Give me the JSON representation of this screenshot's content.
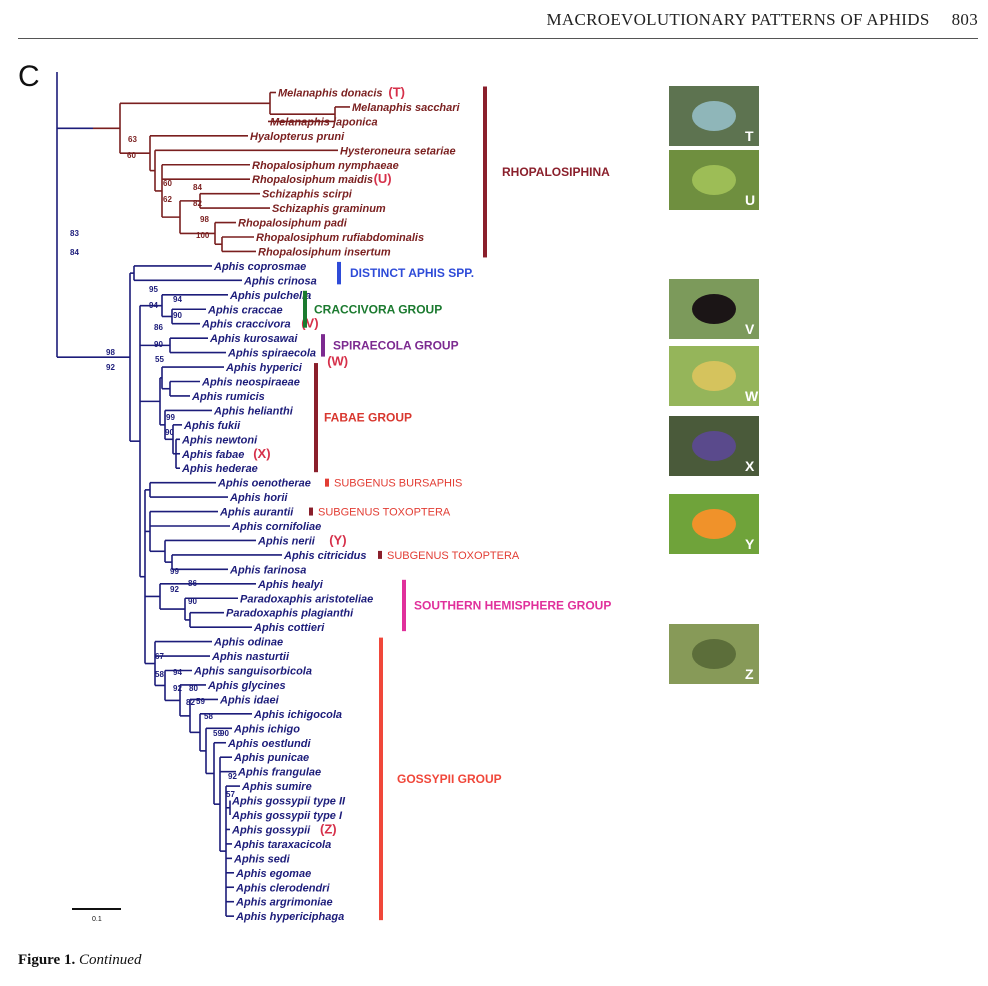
{
  "running_head": {
    "title": "MACROEVOLUTIONARY PATTERNS OF APHIDS",
    "page": "803"
  },
  "panel_letter": "C",
  "scale_bar_label": "0.1",
  "caption": {
    "label": "Figure 1.",
    "text": "Continued"
  },
  "colors": {
    "rhopalosiphina": "#7a1f1f",
    "aphidina": "#1c1c7a",
    "distinct": "#2e4bd8",
    "craccivora": "#1b7a2f",
    "spiraecola": "#7c2a90",
    "fabae": "#d8372f",
    "bursaphis": "#e23d34",
    "toxoptera": "#e23d34",
    "southern": "#e0309b",
    "gossypii": "#f0473a",
    "group_bar_dark": "#8a1f2b"
  },
  "taxa": [
    "Melanaphis  donacis",
    "Melanaphis  sacchari",
    "Melanaphis  japonica",
    "Hyalopterus  pruni",
    "Hysteroneura  setariae",
    "Rhopalosiphum  nymphaeae",
    "Rhopalosiphum  maidis",
    "Schizaphis  scirpi",
    "Schizaphis  graminum",
    "Rhopalosiphum  padi",
    "Rhopalosiphum  rufiabdominalis",
    "Rhopalosiphum  insertum",
    "Aphis  coprosmae",
    "Aphis  crinosa",
    "Aphis  pulchella",
    "Aphis  craccae",
    "Aphis  craccivora",
    "Aphis  kurosawai",
    "Aphis  spiraecola",
    "Aphis  hyperici",
    "Aphis  neospiraeae",
    "Aphis  rumicis",
    "Aphis  helianthi",
    "Aphis  fukii",
    "Aphis  newtoni",
    "Aphis  fabae",
    "Aphis  hederae",
    "Aphis  oenotherae",
    "Aphis  horii",
    "Aphis  aurantii",
    "Aphis  cornifoliae",
    "Aphis  nerii",
    "Aphis  citricidus",
    "Aphis  farinosa",
    "Aphis  healyi",
    "Paradoxaphis  aristoteliae",
    "Paradoxaphis  plagianthi",
    "Aphis  cottieri",
    "Aphis  odinae",
    "Aphis  nasturtii",
    "Aphis  sanguisorbicola",
    "Aphis  glycines",
    "Aphis  idaei",
    "Aphis  ichigocola",
    "Aphis  ichigo",
    "Aphis  oestlundi",
    "Aphis  punicae",
    "Aphis  frangulae",
    "Aphis  sumire",
    "Aphis  gossypii  type  II",
    "Aphis  gossypii  type  I",
    "Aphis  gossypii",
    "Aphis  taraxacicola",
    "Aphis  sedi",
    "Aphis  egomae",
    "Aphis  clerodendri",
    "Aphis  argrimoniae",
    "Aphis  hypericiphaga"
  ],
  "photo_refs": {
    "donacis": "(T)",
    "maidis": "(U)",
    "craccivora": "(V)",
    "spiraecola": "(W)",
    "fabae": "(X)",
    "nerii": "(Y)",
    "gossypii": "(Z)"
  },
  "support_values": [
    "83",
    "84",
    "63",
    "60",
    "60",
    "62",
    "84",
    "82",
    "98",
    "100",
    "95",
    "94",
    "94",
    "90",
    "86",
    "90",
    "98",
    "92",
    "55",
    "99",
    "90",
    "99",
    "92",
    "86",
    "90",
    "67",
    "58",
    "94",
    "92",
    "80",
    "82",
    "59",
    "58",
    "59",
    "90",
    "92",
    "57"
  ],
  "groups": {
    "rhopalosiphina": "RHOPALOSIPHINA",
    "distinct": "DISTINCT APHIS SPP.",
    "craccivora": "CRACCIVORA GROUP",
    "spiraecola": "SPIRAECOLA GROUP",
    "fabae": "FABAE GROUP",
    "bursaphis": "SUBGENUS BURSAPHIS",
    "toxoptera1": "SUBGENUS TOXOPTERA",
    "toxoptera2": "SUBGENUS TOXOPTERA",
    "southern": "SOUTHERN HEMISPHERE GROUP",
    "gossypii": "GOSSYPII GROUP"
  },
  "photos": [
    {
      "tag": "T",
      "bg": "#5d7350",
      "body": "#8fb6b9"
    },
    {
      "tag": "U",
      "bg": "#6f8f3f",
      "body": "#9dbd56"
    },
    {
      "tag": "V",
      "bg": "#7c9a5b",
      "body": "#1b1516"
    },
    {
      "tag": "W",
      "bg": "#95b55a",
      "body": "#d5c35d"
    },
    {
      "tag": "X",
      "bg": "#4a5a3a",
      "body": "#5a4a8c"
    },
    {
      "tag": "Y",
      "bg": "#6fa33a",
      "body": "#f0922a"
    },
    {
      "tag": "Z",
      "bg": "#879a58",
      "body": "#5c6e3a"
    }
  ]
}
